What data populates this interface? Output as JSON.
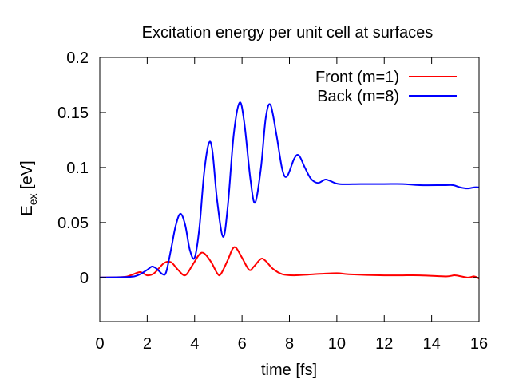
{
  "chart_data": {
    "type": "line",
    "title": "Excitation energy per unit cell at surfaces",
    "xlabel": "time [fs]",
    "ylabel_main": "E",
    "ylabel_sub": "ex",
    "ylabel_unit": " [eV]",
    "xlim": [
      0,
      16
    ],
    "ylim": [
      -0.04,
      0.2
    ],
    "x_ticks": [
      0,
      2,
      4,
      6,
      8,
      10,
      12,
      14,
      16
    ],
    "x_tick_labels": [
      "0",
      "2",
      "4",
      "6",
      "8",
      "10",
      "12",
      "14",
      "16"
    ],
    "y_ticks": [
      0,
      0.05,
      0.1,
      0.15,
      0.2
    ],
    "y_tick_labels": [
      "0",
      "0.05",
      "0.1",
      "0.15",
      "0.2"
    ],
    "grid": false,
    "legend_position": "top-right",
    "series": [
      {
        "name": "Front (m=1)",
        "color": "#ff0000",
        "points": [
          [
            0,
            0
          ],
          [
            1.0,
            0.0005
          ],
          [
            1.3,
            0.002
          ],
          [
            1.7,
            0.005
          ],
          [
            2.0,
            0.002
          ],
          [
            2.3,
            0.004
          ],
          [
            2.7,
            0.013
          ],
          [
            3.0,
            0.014
          ],
          [
            3.3,
            0.007
          ],
          [
            3.6,
            0.002
          ],
          [
            3.9,
            0.011
          ],
          [
            4.2,
            0.021
          ],
          [
            4.4,
            0.022
          ],
          [
            4.7,
            0.014
          ],
          [
            4.95,
            0.004
          ],
          [
            5.1,
            0.003
          ],
          [
            5.4,
            0.016
          ],
          [
            5.6,
            0.026
          ],
          [
            5.75,
            0.027
          ],
          [
            6.0,
            0.018
          ],
          [
            6.3,
            0.007
          ],
          [
            6.5,
            0.01
          ],
          [
            6.8,
            0.017
          ],
          [
            7.0,
            0.015
          ],
          [
            7.3,
            0.008
          ],
          [
            7.7,
            0.003
          ],
          [
            8.2,
            0.002
          ],
          [
            9.0,
            0.003
          ],
          [
            10.0,
            0.004
          ],
          [
            10.5,
            0.003
          ],
          [
            12.0,
            0.002
          ],
          [
            13.5,
            0.002
          ],
          [
            14.6,
            0.001
          ],
          [
            15.0,
            0.002
          ],
          [
            15.5,
            0.0
          ],
          [
            15.8,
            0.001
          ],
          [
            16.0,
            -0.001
          ]
        ]
      },
      {
        "name": "Back (m=8)",
        "color": "#0000ff",
        "points": [
          [
            0,
            0
          ],
          [
            1.2,
            0.0005
          ],
          [
            1.6,
            0.002
          ],
          [
            2.0,
            0.007
          ],
          [
            2.2,
            0.01
          ],
          [
            2.4,
            0.008
          ],
          [
            2.65,
            0.003
          ],
          [
            2.8,
            0.005
          ],
          [
            3.0,
            0.025
          ],
          [
            3.2,
            0.047
          ],
          [
            3.4,
            0.058
          ],
          [
            3.6,
            0.048
          ],
          [
            3.8,
            0.025
          ],
          [
            4.0,
            0.018
          ],
          [
            4.2,
            0.045
          ],
          [
            4.4,
            0.095
          ],
          [
            4.6,
            0.122
          ],
          [
            4.75,
            0.115
          ],
          [
            4.95,
            0.07
          ],
          [
            5.2,
            0.037
          ],
          [
            5.4,
            0.065
          ],
          [
            5.65,
            0.13
          ],
          [
            5.9,
            0.159
          ],
          [
            6.1,
            0.14
          ],
          [
            6.35,
            0.09
          ],
          [
            6.55,
            0.068
          ],
          [
            6.8,
            0.1
          ],
          [
            7.0,
            0.145
          ],
          [
            7.2,
            0.157
          ],
          [
            7.45,
            0.13
          ],
          [
            7.7,
            0.098
          ],
          [
            7.9,
            0.092
          ],
          [
            8.2,
            0.108
          ],
          [
            8.4,
            0.111
          ],
          [
            8.65,
            0.1
          ],
          [
            8.9,
            0.09
          ],
          [
            9.2,
            0.086
          ],
          [
            9.5,
            0.089
          ],
          [
            9.7,
            0.088
          ],
          [
            10.1,
            0.085
          ],
          [
            11.0,
            0.085
          ],
          [
            12.0,
            0.085
          ],
          [
            12.8,
            0.085
          ],
          [
            13.5,
            0.084
          ],
          [
            14.5,
            0.084
          ],
          [
            14.9,
            0.084
          ],
          [
            15.2,
            0.082
          ],
          [
            15.5,
            0.081
          ],
          [
            15.8,
            0.082
          ],
          [
            16.0,
            0.082
          ]
        ]
      }
    ]
  }
}
